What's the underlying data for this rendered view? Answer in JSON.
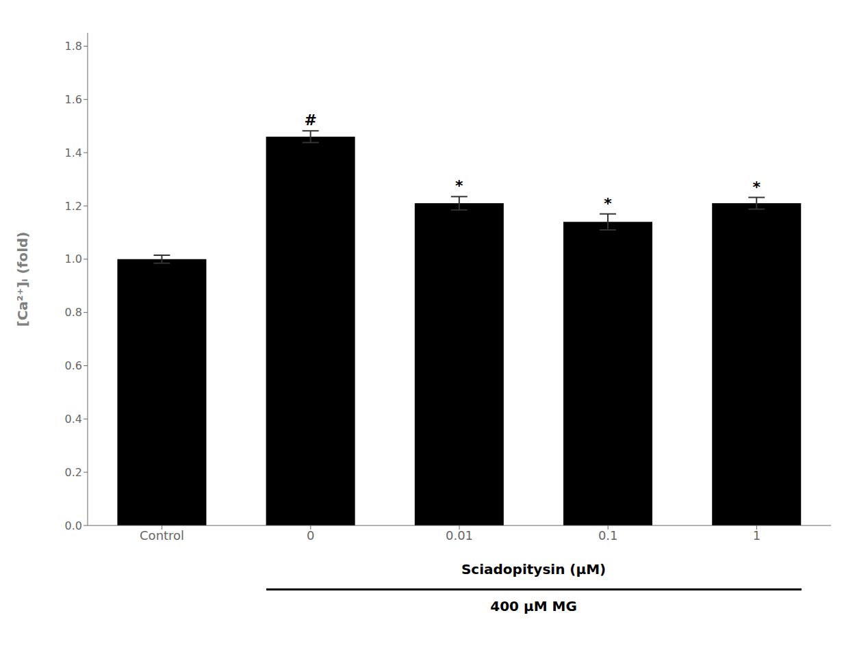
{
  "chart_data": {
    "type": "bar",
    "categories": [
      "Control",
      "0",
      "0.01",
      "0.1",
      "1"
    ],
    "values": [
      1.0,
      1.46,
      1.21,
      1.14,
      1.21
    ],
    "errors": [
      0.015,
      0.022,
      0.025,
      0.03,
      0.022
    ],
    "ylabel": "[Ca²⁺]ᵢ (fold)",
    "xlabel": "Sciadopitysin (μM)",
    "ylim": [
      0.0,
      1.85
    ],
    "yticks": [
      {
        "value": 0.0,
        "label": "0.0"
      },
      0.2,
      0.4,
      0.6,
      0.8,
      {
        "value": 1.0,
        "label": "1.0"
      },
      1.2,
      1.4,
      1.6,
      1.8
    ],
    "annotations": [
      {
        "category": "0",
        "text": "#"
      },
      {
        "category": "0.01",
        "text": "*"
      },
      {
        "category": "0.1",
        "text": "*"
      },
      {
        "category": "1",
        "text": "*"
      },
      {
        "text": "400 μM MG"
      }
    ],
    "grid": false
  }
}
